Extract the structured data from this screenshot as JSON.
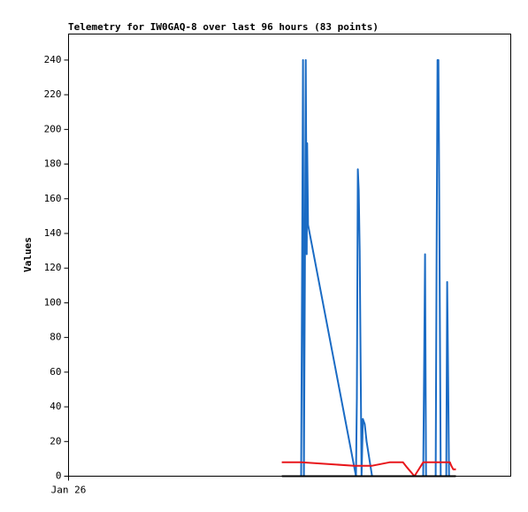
{
  "chart_data": {
    "type": "line",
    "title": "Telemetry for IW0GAQ-8 over last 96 hours (83 points)",
    "ylabel": "Values",
    "xlim": [
      0,
      96
    ],
    "xticks": [
      {
        "value": 0,
        "label": "Jan 26"
      }
    ],
    "ylim": [
      0,
      255
    ],
    "yticks": [
      0,
      20,
      40,
      60,
      80,
      100,
      120,
      140,
      160,
      180,
      200,
      220,
      240
    ],
    "grid": false,
    "series": [
      {
        "color": "#1a6bc4",
        "x": [
          50.5,
          50.7,
          50.9,
          51.1,
          51.3,
          51.5,
          51.7,
          51.8,
          52.0,
          62.4,
          62.6,
          62.8,
          63.0,
          63.2,
          63.6,
          63.9,
          64.3,
          64.7,
          65.9,
          77.0,
          77.2,
          77.4,
          77.6,
          79.7,
          79.9,
          80.1,
          80.3,
          80.4,
          80.6,
          80.8,
          82.0,
          82.2,
          82.4,
          82.6
        ],
        "values": [
          0,
          120,
          240,
          0,
          112,
          240,
          128,
          192,
          145,
          0,
          45,
          177,
          165,
          130,
          0,
          33,
          30,
          20,
          0,
          0,
          65,
          128,
          0,
          0,
          120,
          240,
          240,
          192,
          97,
          0,
          0,
          112,
          57,
          0
        ]
      },
      {
        "color": "#e8161b",
        "x": [
          46.3,
          50.5,
          62.0,
          65.9,
          69.7,
          72.6,
          73.5,
          75.1,
          77.0,
          82.2,
          82.8,
          83.1,
          83.5,
          84.1
        ],
        "values": [
          8,
          8,
          6,
          6,
          8,
          8,
          5,
          0,
          8,
          8,
          8,
          6,
          4,
          4
        ]
      },
      {
        "color": "#000000",
        "x": [
          46.3,
          84.1
        ],
        "values": [
          0,
          0
        ]
      }
    ]
  }
}
